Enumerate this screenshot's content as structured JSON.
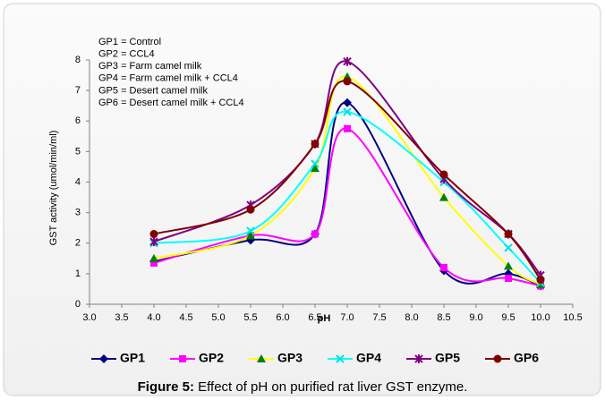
{
  "chart_data": {
    "type": "line",
    "annotations": [
      "GP1 = Control",
      "GP2 = CCL4",
      "GP3 = Farm camel milk",
      "GP4 = Farm camel milk + CCL4",
      "GP5 = Desert camel milk",
      "GP6 = Desert camel milk + CCL4"
    ],
    "y_label": "GST activity (umol/min/ml)",
    "x_label": "pH",
    "caption_label": "Figure 5:",
    "caption": "Effect of pH on purified rat liver GST enzyme.",
    "x": [
      4.0,
      5.5,
      6.5,
      7.0,
      8.5,
      9.5,
      10.0
    ],
    "series": [
      {
        "name": "GP1",
        "color": "#000080",
        "marker": "diamond",
        "marker_color": "#000080",
        "values": [
          1.4,
          2.1,
          2.3,
          6.6,
          1.1,
          1.0,
          0.6
        ]
      },
      {
        "name": "GP2",
        "color": "#ff00ff",
        "marker": "square",
        "marker_color": "#ff00ff",
        "values": [
          1.35,
          2.25,
          2.3,
          5.75,
          1.2,
          0.85,
          0.6
        ]
      },
      {
        "name": "GP3",
        "color": "#ffff00",
        "marker": "triangle",
        "marker_color": "#008000",
        "values": [
          1.5,
          2.25,
          4.45,
          7.45,
          3.5,
          1.25,
          0.65
        ]
      },
      {
        "name": "GP4",
        "color": "#00ffff",
        "marker": "x",
        "marker_color": "#00e0e0",
        "values": [
          2.0,
          2.4,
          4.6,
          6.3,
          4.0,
          1.85,
          0.7
        ]
      },
      {
        "name": "GP5",
        "color": "#800080",
        "marker": "star",
        "marker_color": "#800080",
        "values": [
          2.05,
          3.25,
          5.25,
          7.95,
          4.1,
          2.3,
          0.95
        ]
      },
      {
        "name": "GP6",
        "color": "#800000",
        "marker": "circle",
        "marker_color": "#800000",
        "values": [
          2.3,
          3.1,
          5.25,
          7.3,
          4.25,
          2.3,
          0.8
        ]
      }
    ],
    "xlim": [
      3.0,
      10.5
    ],
    "xticks": [
      {
        "value": 3,
        "label": "3.0"
      },
      3.5,
      {
        "value": 4,
        "label": "4.0"
      },
      4.5,
      {
        "value": 5,
        "label": "5.0"
      },
      5.5,
      {
        "value": 6,
        "label": "6.0"
      },
      6.5,
      {
        "value": 7,
        "label": "7.0"
      },
      7.5,
      {
        "value": 8,
        "label": "8.0"
      },
      8.5,
      {
        "value": 9,
        "label": "9.0"
      },
      9.5,
      {
        "value": 10,
        "label": "10.0"
      },
      10.5
    ],
    "ylim": [
      0,
      8
    ],
    "yticks": [
      0,
      1,
      2,
      3,
      4,
      5,
      6,
      7,
      8
    ],
    "grid": false,
    "legend": "bottom"
  }
}
